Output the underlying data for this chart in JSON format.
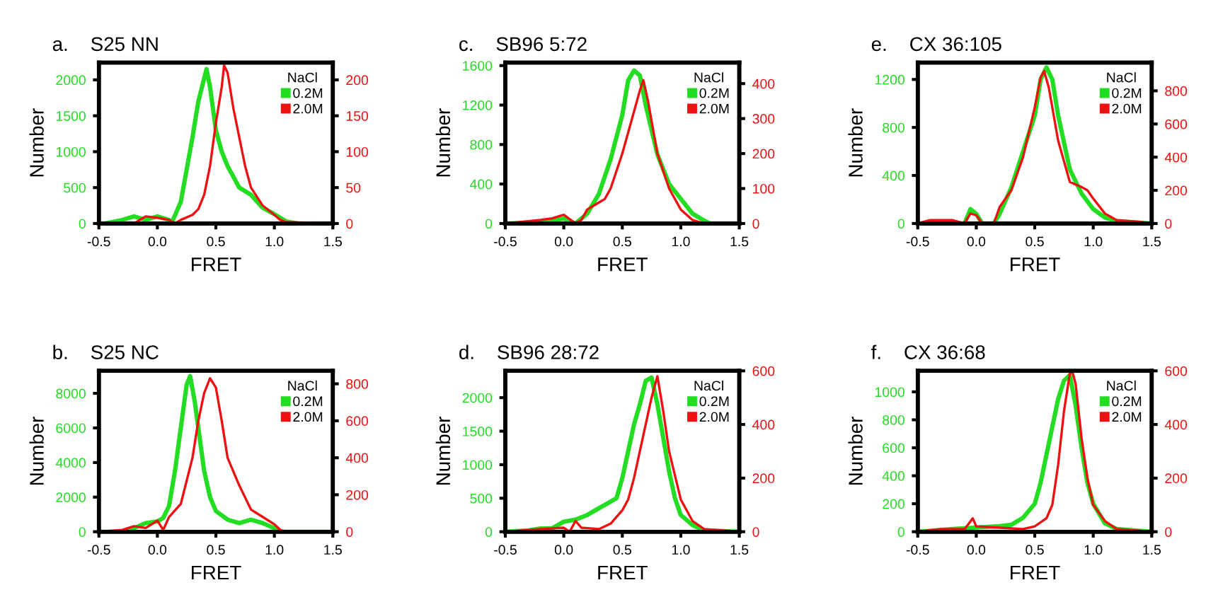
{
  "chart_data": [
    {
      "type": "line",
      "title": "a.    S25 NN",
      "xlabel": "FRET",
      "ylabel": "Number",
      "legend_title": "NaCl",
      "legend": "top right",
      "xlim": [
        -0.5,
        1.5
      ],
      "xticks": [
        {
          "value": -0.5,
          "label": "-0.5"
        },
        {
          "value": 0,
          "label": "0.0"
        },
        {
          "value": 0.5,
          "label": "0.5"
        },
        {
          "value": 1,
          "label": "1.0"
        },
        {
          "value": 1.5,
          "label": "1.5"
        }
      ],
      "ylim": [
        0,
        2240
      ],
      "yticks": [
        0,
        500,
        1000,
        1500,
        2000
      ],
      "y2lim": [
        0,
        224
      ],
      "y2ticks": [
        0,
        50,
        100,
        150,
        200
      ],
      "series": [
        {
          "name": "0.2M",
          "color": "#22dd22",
          "x": [
            -0.45,
            -0.3,
            -0.2,
            -0.1,
            0,
            0.1,
            0.12,
            0.2,
            0.3,
            0.35,
            0.42,
            0.45,
            0.5,
            0.55,
            0.6,
            0.7,
            0.8,
            0.9,
            1.0,
            1.1,
            1.2,
            1.5
          ],
          "values": [
            0,
            50,
            100,
            50,
            100,
            50,
            0,
            300,
            1200,
            1700,
            2150,
            1900,
            1300,
            1000,
            800,
            500,
            400,
            220,
            130,
            30,
            0,
            0
          ]
        },
        {
          "name": "2.0M",
          "color": "#ee1111",
          "axis": "y2",
          "x": [
            -0.5,
            -0.2,
            -0.1,
            0,
            0.1,
            0.15,
            0.2,
            0.3,
            0.35,
            0.4,
            0.45,
            0.5,
            0.55,
            0.57,
            0.6,
            0.65,
            0.7,
            0.75,
            0.8,
            0.9,
            1.0,
            1.05,
            1.1,
            1.5
          ],
          "values": [
            0,
            0,
            10,
            8,
            5,
            0,
            5,
            12,
            20,
            40,
            80,
            140,
            190,
            220,
            210,
            160,
            120,
            80,
            50,
            25,
            12,
            5,
            2,
            0
          ]
        }
      ]
    },
    {
      "type": "line",
      "title": "c.    SB96 5:72",
      "xlabel": "FRET",
      "ylabel": "Number",
      "legend_title": "NaCl",
      "legend": "top right",
      "xlim": [
        -0.5,
        1.5
      ],
      "xticks": [
        {
          "value": -0.5,
          "label": "-0.5"
        },
        {
          "value": 0,
          "label": "0.0"
        },
        {
          "value": 0.5,
          "label": "0.5"
        },
        {
          "value": 1,
          "label": "1.0"
        },
        {
          "value": 1.5,
          "label": "1.5"
        }
      ],
      "ylim": [
        0,
        1630
      ],
      "yticks": [
        0,
        400,
        800,
        1200,
        1600
      ],
      "y2lim": [
        0,
        460
      ],
      "y2ticks": [
        0,
        100,
        200,
        300,
        400
      ],
      "series": [
        {
          "name": "0.2M",
          "color": "#22dd22",
          "x": [
            -0.5,
            -0.2,
            0,
            0.1,
            0.2,
            0.3,
            0.4,
            0.5,
            0.55,
            0.6,
            0.65,
            0.7,
            0.8,
            0.9,
            1.0,
            1.1,
            1.2,
            1.25,
            1.5
          ],
          "values": [
            0,
            10,
            50,
            0,
            100,
            300,
            650,
            1100,
            1450,
            1550,
            1500,
            1200,
            700,
            400,
            250,
            100,
            30,
            0,
            0
          ]
        },
        {
          "name": "2.0M",
          "color": "#ee1111",
          "axis": "y2",
          "x": [
            -0.5,
            -0.2,
            -0.1,
            0,
            0.1,
            0.15,
            0.2,
            0.3,
            0.35,
            0.4,
            0.5,
            0.6,
            0.65,
            0.68,
            0.72,
            0.8,
            0.9,
            1.0,
            1.1,
            1.2,
            1.5
          ],
          "values": [
            0,
            10,
            15,
            25,
            0,
            10,
            40,
            60,
            70,
            100,
            200,
            320,
            380,
            410,
            350,
            200,
            100,
            40,
            10,
            0,
            0
          ]
        }
      ]
    },
    {
      "type": "line",
      "title": "e.    CX 36:105",
      "xlabel": "FRET",
      "ylabel": "Number",
      "legend_title": "NaCl",
      "legend": "top right",
      "xlim": [
        -0.5,
        1.5
      ],
      "xticks": [
        {
          "value": -0.5,
          "label": "-0.5"
        },
        {
          "value": 0,
          "label": "0.0"
        },
        {
          "value": 0.5,
          "label": "0.5"
        },
        {
          "value": 1,
          "label": "1.0"
        },
        {
          "value": 1.5,
          "label": "1.5"
        }
      ],
      "ylim": [
        0,
        1340
      ],
      "yticks": [
        0,
        400,
        800,
        1200
      ],
      "y2lim": [
        0,
        970
      ],
      "y2ticks": [
        0,
        200,
        400,
        600,
        800
      ],
      "series": [
        {
          "name": "0.2M",
          "color": "#22dd22",
          "x": [
            -0.5,
            -0.1,
            -0.05,
            0,
            0.05,
            0.15,
            0.2,
            0.3,
            0.4,
            0.5,
            0.55,
            0.6,
            0.65,
            0.7,
            0.8,
            0.9,
            1.0,
            1.1,
            1.2,
            1.5
          ],
          "values": [
            0,
            0,
            120,
            80,
            0,
            0,
            80,
            300,
            600,
            900,
            1200,
            1300,
            1200,
            900,
            450,
            250,
            120,
            50,
            20,
            0
          ]
        },
        {
          "name": "2.0M",
          "color": "#ee1111",
          "axis": "y2",
          "x": [
            -0.5,
            -0.4,
            -0.2,
            -0.1,
            -0.05,
            0,
            0.05,
            0.15,
            0.2,
            0.3,
            0.4,
            0.5,
            0.55,
            0.58,
            0.62,
            0.7,
            0.8,
            0.9,
            0.95,
            1.0,
            1.1,
            1.2,
            1.4,
            1.5
          ],
          "values": [
            0,
            20,
            20,
            0,
            60,
            50,
            0,
            0,
            100,
            200,
            400,
            700,
            880,
            920,
            820,
            500,
            250,
            220,
            200,
            150,
            60,
            20,
            10,
            0
          ]
        }
      ]
    },
    {
      "type": "line",
      "title": "b.    S25 NC",
      "xlabel": "FRET",
      "ylabel": "Number",
      "legend_title": "NaCl",
      "legend": "top right",
      "xlim": [
        -0.5,
        1.5
      ],
      "xticks": [
        {
          "value": -0.5,
          "label": "-0.5"
        },
        {
          "value": 0,
          "label": "0.0"
        },
        {
          "value": 0.5,
          "label": "0.5"
        },
        {
          "value": 1,
          "label": "1.0"
        },
        {
          "value": 1.5,
          "label": "1.5"
        }
      ],
      "ylim": [
        0,
        9300
      ],
      "yticks": [
        0,
        2000,
        4000,
        6000,
        8000
      ],
      "y2lim": [
        0,
        870
      ],
      "y2ticks": [
        0,
        200,
        400,
        600,
        800
      ],
      "series": [
        {
          "name": "0.2M",
          "color": "#22dd22",
          "x": [
            -0.5,
            -0.3,
            -0.2,
            -0.1,
            0,
            0.05,
            0.1,
            0.15,
            0.2,
            0.25,
            0.28,
            0.32,
            0.35,
            0.4,
            0.45,
            0.5,
            0.6,
            0.7,
            0.8,
            0.9,
            1.0,
            1.05,
            1.1,
            1.5
          ],
          "values": [
            0,
            0,
            200,
            500,
            600,
            800,
            1500,
            3500,
            6000,
            8500,
            9000,
            7500,
            6000,
            3500,
            2000,
            1200,
            700,
            500,
            700,
            500,
            200,
            0,
            0,
            0
          ]
        },
        {
          "name": "2.0M",
          "color": "#ee1111",
          "axis": "y2",
          "x": [
            -0.5,
            -0.3,
            -0.2,
            -0.1,
            0,
            0.05,
            0.1,
            0.2,
            0.3,
            0.35,
            0.4,
            0.45,
            0.5,
            0.55,
            0.6,
            0.7,
            0.8,
            0.9,
            1.0,
            1.05,
            1.1,
            1.5
          ],
          "values": [
            0,
            10,
            30,
            20,
            60,
            10,
            80,
            150,
            400,
            600,
            750,
            830,
            780,
            600,
            400,
            250,
            120,
            80,
            40,
            10,
            0,
            0
          ]
        }
      ]
    },
    {
      "type": "line",
      "title": "d.    SB96 28:72",
      "xlabel": "FRET",
      "ylabel": "Number",
      "legend_title": "NaCl",
      "legend": "top right",
      "xlim": [
        -0.5,
        1.5
      ],
      "xticks": [
        {
          "value": -0.5,
          "label": "-0.5"
        },
        {
          "value": 0,
          "label": "0.0"
        },
        {
          "value": 0.5,
          "label": "0.5"
        },
        {
          "value": 1,
          "label": "1.0"
        },
        {
          "value": 1.5,
          "label": "1.5"
        }
      ],
      "ylim": [
        0,
        2400
      ],
      "yticks": [
        0,
        500,
        1000,
        1500,
        2000
      ],
      "y2lim": [
        0,
        600
      ],
      "y2ticks": [
        0,
        200,
        400,
        600
      ],
      "series": [
        {
          "name": "0.2M",
          "color": "#22dd22",
          "x": [
            -0.5,
            -0.3,
            -0.2,
            -0.1,
            0,
            0.1,
            0.2,
            0.3,
            0.4,
            0.45,
            0.5,
            0.55,
            0.6,
            0.65,
            0.7,
            0.75,
            0.8,
            0.85,
            0.9,
            0.95,
            1.0,
            1.1,
            1.2,
            1.5
          ],
          "values": [
            0,
            20,
            50,
            50,
            150,
            180,
            250,
            350,
            450,
            500,
            800,
            1200,
            1600,
            1900,
            2250,
            2300,
            1900,
            1400,
            900,
            500,
            250,
            100,
            20,
            0
          ]
        },
        {
          "name": "2.0M",
          "color": "#ee1111",
          "axis": "y2",
          "x": [
            -0.5,
            -0.2,
            0,
            0.05,
            0.1,
            0.15,
            0.3,
            0.4,
            0.5,
            0.55,
            0.6,
            0.65,
            0.7,
            0.75,
            0.8,
            0.85,
            0.9,
            1.0,
            1.1,
            1.2,
            1.5
          ],
          "values": [
            0,
            10,
            15,
            0,
            40,
            15,
            10,
            30,
            80,
            120,
            200,
            300,
            400,
            500,
            580,
            450,
            300,
            120,
            40,
            10,
            0
          ]
        }
      ]
    },
    {
      "type": "line",
      "title": "f.    CX 36:68",
      "xlabel": "FRET",
      "ylabel": "Number",
      "legend_title": "NaCl",
      "legend": "top right",
      "xlim": [
        -0.5,
        1.5
      ],
      "xticks": [
        {
          "value": -0.5,
          "label": "-0.5"
        },
        {
          "value": 0,
          "label": "0.0"
        },
        {
          "value": 0.5,
          "label": "0.5"
        },
        {
          "value": 1,
          "label": "1.0"
        },
        {
          "value": 1.5,
          "label": "1.5"
        }
      ],
      "ylim": [
        0,
        1150
      ],
      "yticks": [
        0,
        200,
        400,
        600,
        800,
        1000
      ],
      "y2lim": [
        0,
        600
      ],
      "y2ticks": [
        0,
        200,
        400,
        600
      ],
      "series": [
        {
          "name": "0.2M",
          "color": "#22dd22",
          "x": [
            -0.5,
            -0.2,
            0,
            0.2,
            0.3,
            0.4,
            0.5,
            0.55,
            0.6,
            0.65,
            0.7,
            0.75,
            0.8,
            0.85,
            0.9,
            0.95,
            1.0,
            1.1,
            1.2,
            1.5
          ],
          "values": [
            0,
            20,
            30,
            40,
            50,
            100,
            200,
            350,
            550,
            750,
            950,
            1080,
            1120,
            900,
            600,
            350,
            200,
            60,
            20,
            0
          ]
        },
        {
          "name": "2.0M",
          "color": "#ee1111",
          "axis": "y2",
          "x": [
            -0.5,
            -0.3,
            -0.1,
            -0.03,
            0,
            0.2,
            0.4,
            0.5,
            0.6,
            0.65,
            0.7,
            0.75,
            0.8,
            0.82,
            0.85,
            0.9,
            0.95,
            1.0,
            1.1,
            1.2,
            1.5
          ],
          "values": [
            0,
            10,
            10,
            50,
            20,
            15,
            10,
            20,
            50,
            100,
            250,
            450,
            590,
            600,
            550,
            350,
            200,
            100,
            40,
            10,
            0
          ]
        }
      ]
    }
  ]
}
